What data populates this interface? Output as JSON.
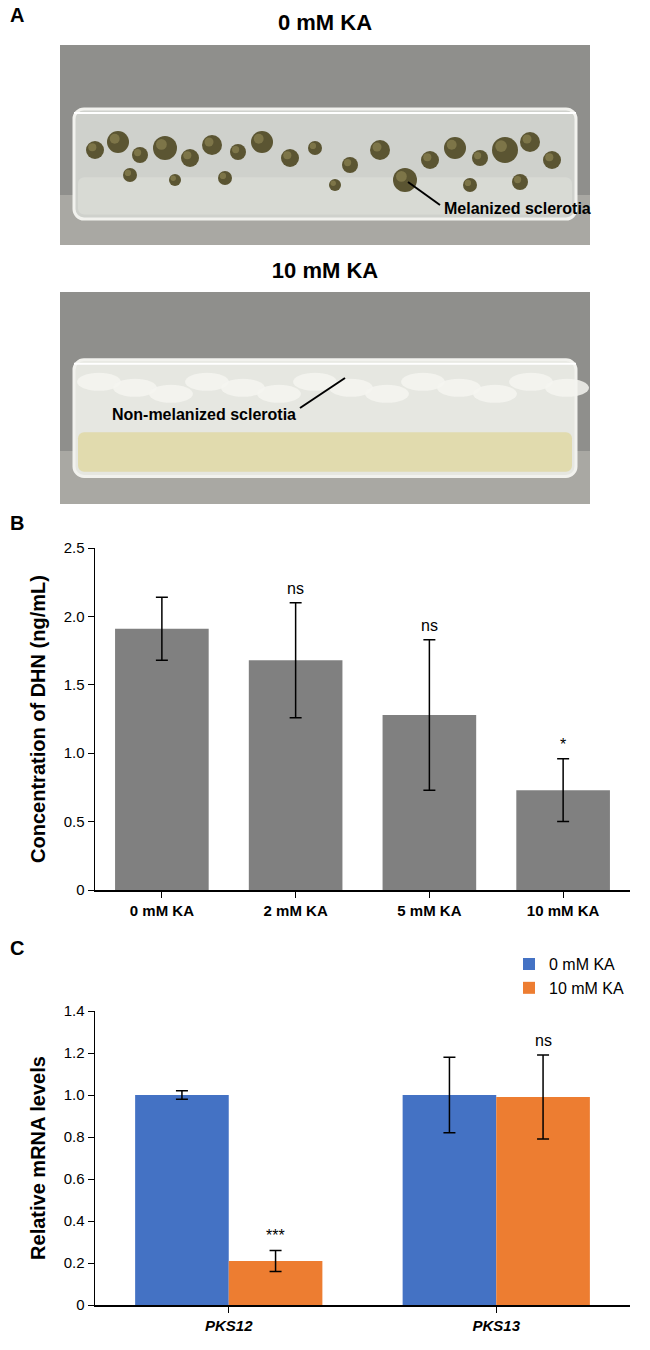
{
  "panel_a": {
    "panel": "A",
    "photos": [
      {
        "title": "0 mM KA",
        "annotation": "Melanized sclerotia"
      },
      {
        "title": "10 mM KA",
        "annotation": "Non-melanized sclerotia"
      }
    ]
  },
  "chart_data": [
    {
      "panel": "B",
      "type": "bar",
      "categories": [
        "0 mM KA",
        "2 mM KA",
        "5 mM KA",
        "10 mM KA"
      ],
      "values": [
        1.91,
        1.68,
        1.28,
        0.73
      ],
      "errors": [
        0.23,
        0.42,
        0.55,
        0.23
      ],
      "color": "#808080",
      "y_label": "Concentration of DHN (ng/mL)",
      "ylim": [
        0,
        2.5
      ],
      "yticks": [
        0,
        0.5,
        {
          "value": 1,
          "label": "1.0"
        },
        1.5,
        {
          "value": 2,
          "label": "2.0"
        },
        2.5
      ],
      "grid": false,
      "annotations": [
        {
          "category": "2 mM KA",
          "text": "ns"
        },
        {
          "category": "5 mM KA",
          "text": "ns"
        },
        {
          "category": "10 mM KA",
          "text": "*"
        }
      ]
    },
    {
      "panel": "C",
      "type": "bar",
      "categories": [
        "PKS12",
        "PKS13"
      ],
      "series": [
        {
          "name": "0 mM KA",
          "color": "#4472c4",
          "values": [
            1.0,
            1.0
          ],
          "errors": [
            0.02,
            0.18
          ]
        },
        {
          "name": "10 mM KA",
          "color": "#ed7d31",
          "values": [
            0.21,
            0.99
          ],
          "errors": [
            0.05,
            0.2
          ]
        }
      ],
      "y_label": "Relative mRNA levels",
      "ylim": [
        0,
        1.4
      ],
      "yticks": [
        0,
        0.2,
        0.4,
        0.6,
        0.8,
        {
          "value": 1,
          "label": "1.0"
        },
        1.2,
        1.4
      ],
      "legend": "top right",
      "grid": false,
      "annotations": [
        {
          "category": "PKS12",
          "series": "10 mM KA",
          "text": "***"
        },
        {
          "category": "PKS13",
          "series": "10 mM KA",
          "text": "ns"
        }
      ]
    }
  ]
}
